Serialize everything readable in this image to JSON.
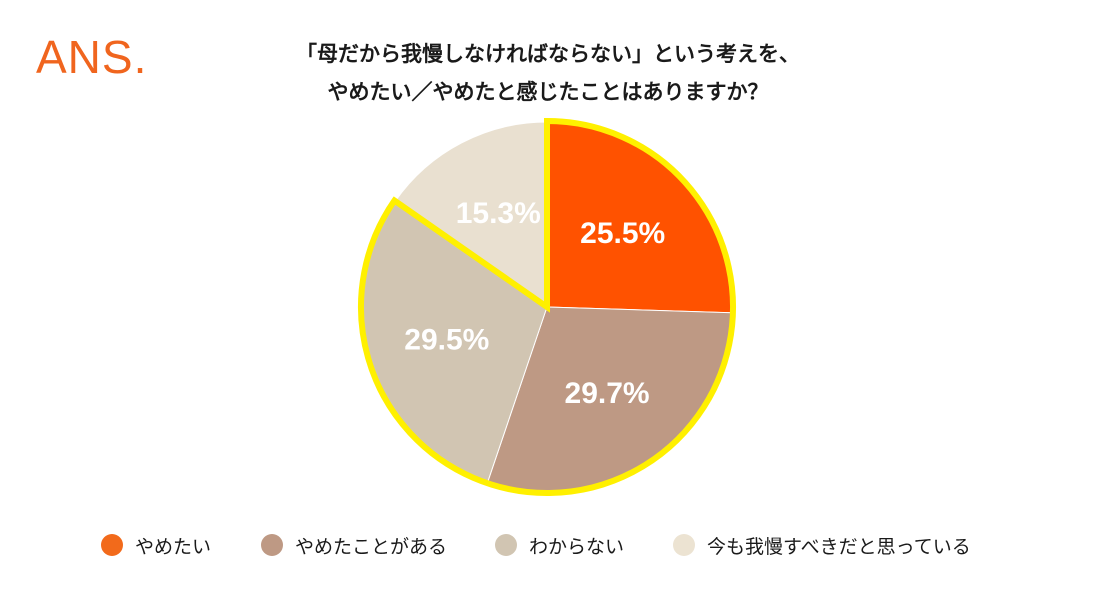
{
  "logo": {
    "text": "ANS."
  },
  "chart_data": {
    "type": "pie",
    "title": "「母だから我慢しなければならない」という考えを、",
    "subtitle": "やめたい／やめたと感じたことはありますか？",
    "slices": [
      {
        "name": "やめたい",
        "value": 25.5,
        "label": "25.5%",
        "color": "#ff5200",
        "highlighted": true
      },
      {
        "name": "やめたことがある",
        "value": 29.7,
        "label": "29.7%",
        "color": "#be9984",
        "highlighted": true
      },
      {
        "name": "わからない",
        "value": 29.5,
        "label": "29.5%",
        "color": "#d1c5b2",
        "highlighted": true
      },
      {
        "name": "今も我慢すべきだと思っている",
        "value": 15.3,
        "label": "15.3%",
        "color": "#e9e0d0",
        "highlighted": false
      }
    ],
    "start_angle": "12 o'clock",
    "direction": "clockwise",
    "highlight_color": "#fff000",
    "label_color": "#ffffff",
    "legend_position": "bottom"
  },
  "legend": {
    "items": [
      {
        "label": "やめたい",
        "color": "#f26a1b"
      },
      {
        "label": "やめたことがある",
        "color": "#be9984"
      },
      {
        "label": "わからない",
        "color": "#d1c5b2"
      },
      {
        "label": "今も我慢すべきだと思っている",
        "color": "#ece3d2"
      }
    ]
  }
}
